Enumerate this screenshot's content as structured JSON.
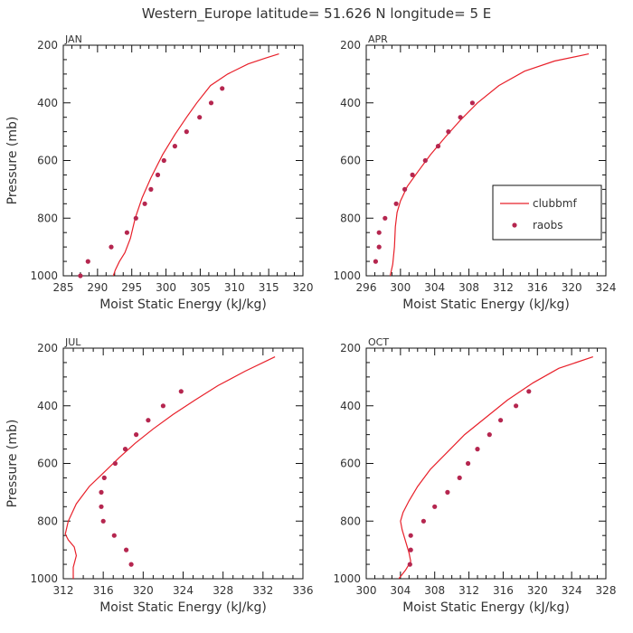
{
  "title": "Western_Europe  latitude= 51.626 N longitude= 5 E",
  "colors": {
    "model": "#e8202a",
    "obs": "#b5264f"
  },
  "legend": {
    "model_label": "clubbmf",
    "obs_label": "raobs",
    "panel": 1
  },
  "chart_data": [
    {
      "type": "line",
      "panel_label": "JAN",
      "xlabel": "Moist Static Energy (kJ/kg)",
      "ylabel": "Pressure (mb)",
      "xlim": [
        285,
        320
      ],
      "ylim": [
        1000,
        200
      ],
      "xticks": [
        285,
        290,
        295,
        300,
        305,
        310,
        315,
        320
      ],
      "yticks": [
        200,
        400,
        600,
        800,
        1000
      ],
      "series": [
        {
          "name": "clubbmf",
          "kind": "line",
          "points": [
            [
              292.3,
              1000
            ],
            [
              292.6,
              980
            ],
            [
              293.2,
              950
            ],
            [
              294.0,
              920
            ],
            [
              294.8,
              870
            ],
            [
              295.5,
              800
            ],
            [
              296.5,
              730
            ],
            [
              297.8,
              660
            ],
            [
              299.5,
              580
            ],
            [
              301.3,
              510
            ],
            [
              303.0,
              450
            ],
            [
              304.5,
              400
            ],
            [
              306.5,
              340
            ],
            [
              309.0,
              300
            ],
            [
              312.0,
              265
            ],
            [
              314.5,
              245
            ],
            [
              316.5,
              230
            ]
          ]
        },
        {
          "name": "raobs",
          "kind": "scatter",
          "points": [
            [
              287.5,
              1000
            ],
            [
              288.6,
              950
            ],
            [
              292.0,
              900
            ],
            [
              294.3,
              850
            ],
            [
              295.6,
              800
            ],
            [
              296.9,
              750
            ],
            [
              297.8,
              700
            ],
            [
              298.8,
              650
            ],
            [
              299.7,
              600
            ],
            [
              301.3,
              550
            ],
            [
              303.0,
              500
            ],
            [
              304.9,
              450
            ],
            [
              306.6,
              400
            ],
            [
              308.2,
              350
            ]
          ]
        }
      ]
    },
    {
      "type": "line",
      "panel_label": "APR",
      "xlabel": "Moist Static Energy (kJ/kg)",
      "ylabel": "",
      "xlim": [
        296,
        324
      ],
      "ylim": [
        1000,
        200
      ],
      "xticks": [
        296,
        300,
        304,
        308,
        312,
        316,
        320,
        324
      ],
      "yticks": [
        200,
        400,
        600,
        800,
        1000
      ],
      "series": [
        {
          "name": "clubbmf",
          "kind": "line",
          "points": [
            [
              298.8,
              1000
            ],
            [
              299.1,
              960
            ],
            [
              299.3,
              900
            ],
            [
              299.4,
              830
            ],
            [
              299.6,
              780
            ],
            [
              300.0,
              740
            ],
            [
              300.8,
              690
            ],
            [
              302.0,
              640
            ],
            [
              303.5,
              580
            ],
            [
              305.2,
              520
            ],
            [
              307.0,
              460
            ],
            [
              309.0,
              400
            ],
            [
              311.5,
              340
            ],
            [
              314.5,
              290
            ],
            [
              318.0,
              255
            ],
            [
              322.0,
              230
            ]
          ]
        },
        {
          "name": "raobs",
          "kind": "scatter",
          "points": [
            [
              297.1,
              950
            ],
            [
              297.5,
              900
            ],
            [
              297.5,
              850
            ],
            [
              298.2,
              800
            ],
            [
              299.5,
              750
            ],
            [
              300.5,
              700
            ],
            [
              301.4,
              650
            ],
            [
              302.9,
              600
            ],
            [
              304.4,
              550
            ],
            [
              305.6,
              500
            ],
            [
              307.0,
              450
            ],
            [
              308.4,
              400
            ]
          ]
        }
      ]
    },
    {
      "type": "line",
      "panel_label": "JUL",
      "xlabel": "Moist Static Energy (kJ/kg)",
      "ylabel": "Pressure (mb)",
      "xlim": [
        312,
        336
      ],
      "ylim": [
        1000,
        200
      ],
      "xticks": [
        312,
        316,
        320,
        324,
        328,
        332,
        336
      ],
      "yticks": [
        200,
        400,
        600,
        800,
        1000
      ],
      "series": [
        {
          "name": "clubbmf",
          "kind": "line",
          "points": [
            [
              313.0,
              1010
            ],
            [
              313.0,
              960
            ],
            [
              313.3,
              920
            ],
            [
              313.1,
              890
            ],
            [
              312.5,
              865
            ],
            [
              312.2,
              845
            ],
            [
              312.5,
              800
            ],
            [
              313.3,
              740
            ],
            [
              314.6,
              680
            ],
            [
              316.1,
              630
            ],
            [
              317.6,
              580
            ],
            [
              319.2,
              530
            ],
            [
              321.0,
              480
            ],
            [
              323.0,
              430
            ],
            [
              325.2,
              380
            ],
            [
              327.5,
              330
            ],
            [
              330.2,
              280
            ],
            [
              333.2,
              230
            ]
          ]
        },
        {
          "name": "raobs",
          "kind": "scatter",
          "points": [
            [
              318.8,
              950
            ],
            [
              318.3,
              900
            ],
            [
              317.1,
              850
            ],
            [
              316.0,
              800
            ],
            [
              315.8,
              750
            ],
            [
              315.8,
              700
            ],
            [
              316.1,
              650
            ],
            [
              317.2,
              600
            ],
            [
              318.2,
              550
            ],
            [
              319.3,
              500
            ],
            [
              320.5,
              450
            ],
            [
              322.0,
              400
            ],
            [
              323.8,
              350
            ]
          ]
        }
      ]
    },
    {
      "type": "line",
      "panel_label": "OCT",
      "xlabel": "Moist Static Energy (kJ/kg)",
      "ylabel": "",
      "xlim": [
        300,
        328
      ],
      "ylim": [
        1000,
        200
      ],
      "xticks": [
        300,
        304,
        308,
        312,
        316,
        320,
        324,
        328
      ],
      "yticks": [
        200,
        400,
        600,
        800,
        1000
      ],
      "series": [
        {
          "name": "clubbmf",
          "kind": "line",
          "points": [
            [
              303.8,
              1000
            ],
            [
              304.6,
              970
            ],
            [
              305.2,
              940
            ],
            [
              305.0,
              910
            ],
            [
              304.6,
              870
            ],
            [
              304.2,
              830
            ],
            [
              304.0,
              800
            ],
            [
              304.3,
              770
            ],
            [
              305.0,
              730
            ],
            [
              306.0,
              680
            ],
            [
              307.5,
              620
            ],
            [
              309.5,
              560
            ],
            [
              311.5,
              500
            ],
            [
              314.0,
              440
            ],
            [
              316.5,
              380
            ],
            [
              319.5,
              320
            ],
            [
              322.5,
              270
            ],
            [
              326.5,
              230
            ]
          ]
        },
        {
          "name": "raobs",
          "kind": "scatter",
          "points": [
            [
              305.1,
              950
            ],
            [
              305.2,
              900
            ],
            [
              305.2,
              850
            ],
            [
              306.7,
              800
            ],
            [
              308.0,
              750
            ],
            [
              309.5,
              700
            ],
            [
              310.9,
              650
            ],
            [
              311.9,
              600
            ],
            [
              313.0,
              550
            ],
            [
              314.4,
              500
            ],
            [
              315.7,
              450
            ],
            [
              317.5,
              400
            ],
            [
              319.0,
              350
            ]
          ]
        }
      ]
    }
  ]
}
